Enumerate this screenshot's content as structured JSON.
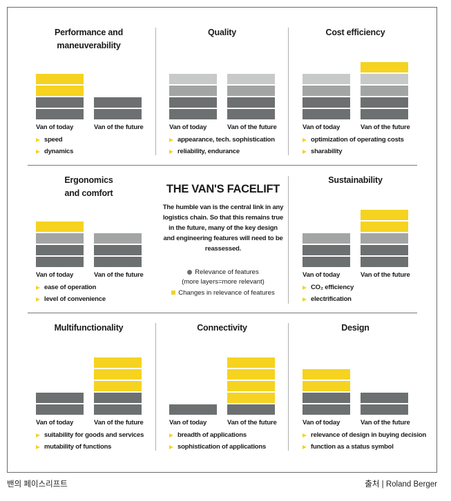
{
  "colors": {
    "relevance_dark": "#6d7070",
    "relevance_mid": "#a3a4a4",
    "relevance_light": "#c8c9c9",
    "change_yellow": "#f5d320"
  },
  "center": {
    "title": "THE VAN'S FACELIFT",
    "description_lines": [
      "The humble van is the central link in any",
      "logistics chain. So that this remains true",
      "in the future, many of the key design",
      "and engineering features will need to be",
      "reassessed."
    ],
    "legend": {
      "relevance": "Relevance of features",
      "relevance_note": "(more layers=more relevant)",
      "changes": "Changes in relevance of features"
    }
  },
  "captions": {
    "left": "밴의 페이스리프트",
    "right": "출처 | Roland Berger"
  },
  "chart_data": [
    {
      "type": "bar",
      "title": "Performance and maneuverability",
      "categories": [
        "Van of today",
        "Van of the future"
      ],
      "series": [
        {
          "name": "Relevance of features",
          "values": [
            2,
            2
          ]
        },
        {
          "name": "Changes in relevance of features",
          "values": [
            2,
            0
          ]
        }
      ],
      "features": [
        "speed",
        "dynamics"
      ]
    },
    {
      "type": "bar",
      "title": "Quality",
      "categories": [
        "Van of today",
        "Van of the future"
      ],
      "series": [
        {
          "name": "Relevance of features",
          "values": [
            4,
            4
          ]
        },
        {
          "name": "Changes in relevance of features",
          "values": [
            0,
            0
          ]
        }
      ],
      "features": [
        "appearance, tech. sophistication",
        "reliability, endurance"
      ]
    },
    {
      "type": "bar",
      "title": "Cost efficiency",
      "categories": [
        "Van of today",
        "Van of the future"
      ],
      "series": [
        {
          "name": "Relevance of features",
          "values": [
            4,
            4
          ]
        },
        {
          "name": "Changes in relevance of features",
          "values": [
            0,
            1
          ]
        }
      ],
      "features": [
        "optimization of operating costs",
        "sharability"
      ]
    },
    {
      "type": "bar",
      "title": "Ergonomics and comfort",
      "categories": [
        "Van of today",
        "Van of the future"
      ],
      "series": [
        {
          "name": "Relevance of features",
          "values": [
            3,
            3
          ]
        },
        {
          "name": "Changes in relevance of features",
          "values": [
            1,
            0
          ]
        }
      ],
      "features": [
        "ease of operation",
        "level of convenience"
      ]
    },
    {
      "type": "bar",
      "title": "Sustainability",
      "categories": [
        "Van of today",
        "Van of the future"
      ],
      "series": [
        {
          "name": "Relevance of features",
          "values": [
            3,
            3
          ]
        },
        {
          "name": "Changes in relevance of features",
          "values": [
            0,
            2
          ]
        }
      ],
      "features": [
        "CO₂ efficiency",
        "electrification"
      ]
    },
    {
      "type": "bar",
      "title": "Multifunctionality",
      "categories": [
        "Van of today",
        "Van of the future"
      ],
      "series": [
        {
          "name": "Relevance of features",
          "values": [
            2,
            2
          ]
        },
        {
          "name": "Changes in relevance of features",
          "values": [
            0,
            3
          ]
        }
      ],
      "features": [
        "suitability for goods and services",
        "mutability of functions"
      ]
    },
    {
      "type": "bar",
      "title": "Connectivity",
      "categories": [
        "Van of today",
        "Van of the future"
      ],
      "series": [
        {
          "name": "Relevance of features",
          "values": [
            1,
            1
          ]
        },
        {
          "name": "Changes in relevance of features",
          "values": [
            0,
            4
          ]
        }
      ],
      "features": [
        "breadth of applications",
        "sophistication of applications"
      ]
    },
    {
      "type": "bar",
      "title": "Design",
      "categories": [
        "Van of today",
        "Van of the future"
      ],
      "series": [
        {
          "name": "Relevance of features",
          "values": [
            2,
            2
          ]
        },
        {
          "name": "Changes in relevance of features",
          "values": [
            2,
            0
          ]
        }
      ],
      "features": [
        "relevance of design in buying decision",
        "function as a status symbol"
      ]
    }
  ]
}
